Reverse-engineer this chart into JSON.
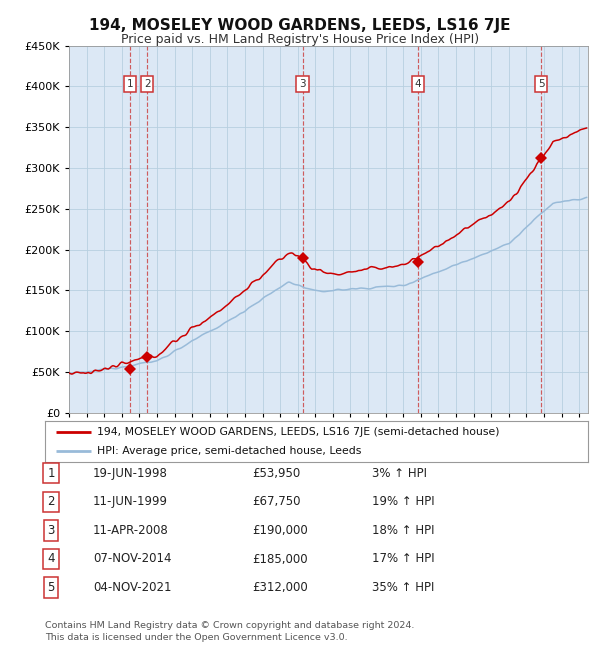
{
  "title": "194, MOSELEY WOOD GARDENS, LEEDS, LS16 7JE",
  "subtitle": "Price paid vs. HM Land Registry's House Price Index (HPI)",
  "legend_line1": "194, MOSELEY WOOD GARDENS, LEEDS, LS16 7JE (semi-detached house)",
  "legend_line2": "HPI: Average price, semi-detached house, Leeds",
  "footer1": "Contains HM Land Registry data © Crown copyright and database right 2024.",
  "footer2": "This data is licensed under the Open Government Licence v3.0.",
  "sale_dates_x": [
    1998.46,
    1999.44,
    2008.28,
    2014.85,
    2021.84
  ],
  "sale_prices_y": [
    53950,
    67750,
    190000,
    185000,
    312000
  ],
  "sale_labels": [
    "1",
    "2",
    "3",
    "4",
    "5"
  ],
  "table_rows": [
    [
      "1",
      "19-JUN-1998",
      "£53,950",
      "3% ↑ HPI"
    ],
    [
      "2",
      "11-JUN-1999",
      "£67,750",
      "19% ↑ HPI"
    ],
    [
      "3",
      "11-APR-2008",
      "£190,000",
      "18% ↑ HPI"
    ],
    [
      "4",
      "07-NOV-2014",
      "£185,000",
      "17% ↑ HPI"
    ],
    [
      "5",
      "04-NOV-2021",
      "£312,000",
      "35% ↑ HPI"
    ]
  ],
  "ylim": [
    0,
    450000
  ],
  "xlim_start": 1995.0,
  "xlim_end": 2024.5,
  "background_color": "#ffffff",
  "plot_bg_color": "#dce8f5",
  "grid_color": "#b8cfe0",
  "hpi_line_color": "#99bbd9",
  "price_line_color": "#cc0000",
  "vline_color": "#cc4444",
  "marker_color": "#cc0000",
  "label_box_color": "#ffffff",
  "label_box_edge": "#cc3333",
  "shade_color": "#c8dcee"
}
